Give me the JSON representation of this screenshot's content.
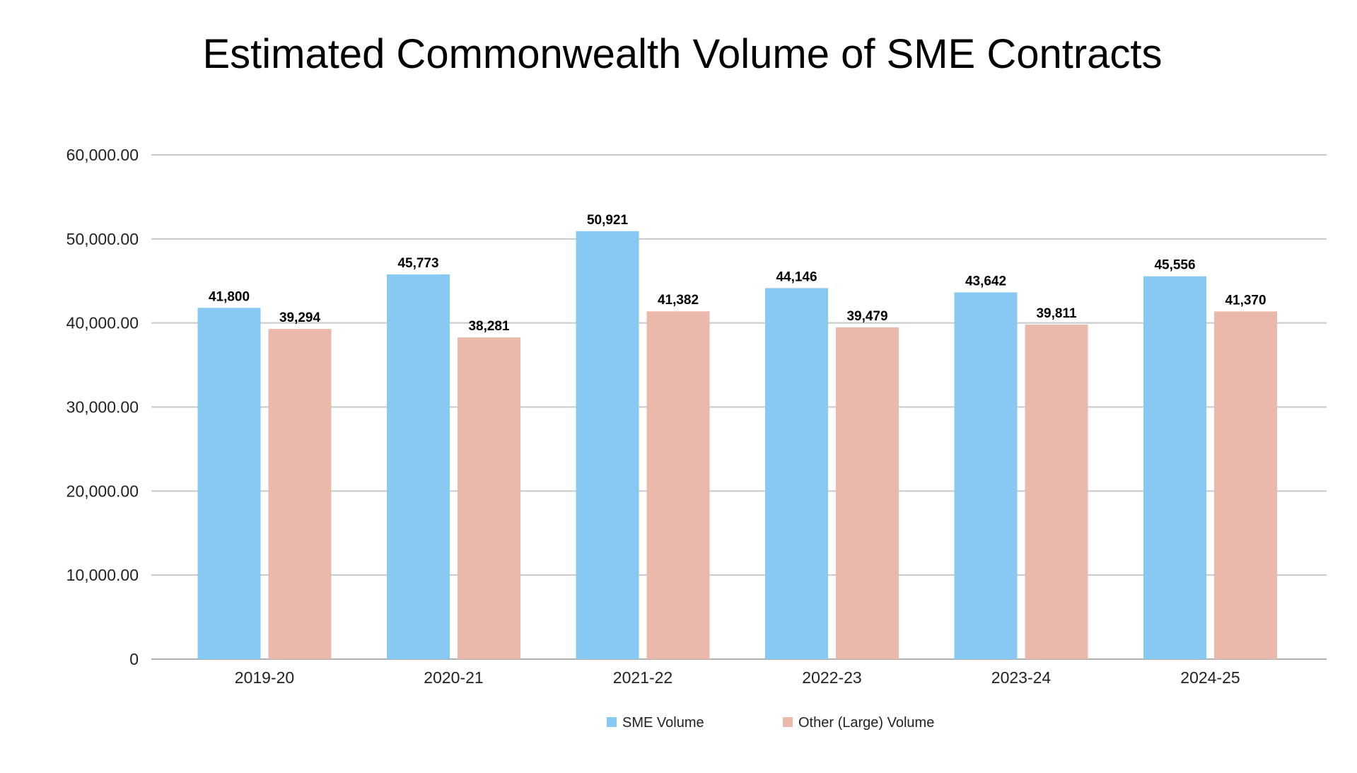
{
  "chart_data": {
    "type": "bar",
    "title": "Estimated Commonwealth Volume of SME Contracts",
    "xlabel": "",
    "ylabel": "",
    "categories": [
      "2019-20",
      "2020-21",
      "2021-22",
      "2022-23",
      "2023-24",
      "2024-25"
    ],
    "series": [
      {
        "name": "SME Volume",
        "color": "#87C9F2",
        "values": [
          41800,
          45773,
          50921,
          44146,
          43642,
          45556
        ],
        "labels": [
          "41,800",
          "45,773",
          "50,921",
          "44,146",
          "43,642",
          "45,556"
        ]
      },
      {
        "name": "Other (Large) Volume",
        "color": "#EBB9AB",
        "values": [
          39294,
          38281,
          41382,
          39479,
          39811,
          41370
        ],
        "labels": [
          "39,294",
          "38,281",
          "41,382",
          "39,479",
          "39,811",
          "41,370"
        ]
      }
    ],
    "ylim": [
      0,
      60000
    ],
    "yticks": [
      0,
      10000,
      20000,
      30000,
      40000,
      50000,
      60000
    ],
    "ytick_labels": [
      "0",
      "10,000.00",
      "20,000.00",
      "30,000.00",
      "40,000.00",
      "50,000.00",
      "60,000.00"
    ],
    "grid": true,
    "legend_position": "bottom"
  }
}
